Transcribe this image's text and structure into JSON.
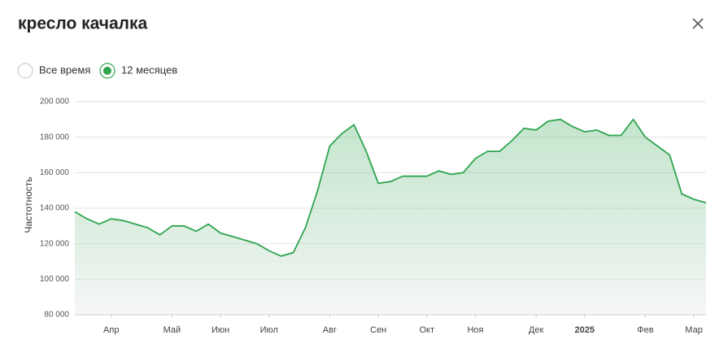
{
  "header": {
    "title": "кресло качалка"
  },
  "options": [
    {
      "label": "Все время",
      "selected": false
    },
    {
      "label": "12 месяцев",
      "selected": true
    }
  ],
  "chart_data": {
    "type": "area",
    "ylabel": "Частотность",
    "categories": [
      null,
      null,
      null,
      "Апр",
      null,
      null,
      null,
      null,
      "Май",
      null,
      null,
      null,
      "Июн",
      null,
      null,
      null,
      "Июл",
      null,
      null,
      null,
      null,
      "Авг",
      null,
      null,
      null,
      "Сен",
      null,
      null,
      null,
      "Окт",
      null,
      null,
      null,
      "Ноя",
      null,
      null,
      null,
      null,
      "Дек",
      null,
      null,
      null,
      "2025",
      null,
      null,
      null,
      null,
      "Фев",
      null,
      null,
      null,
      "Мар",
      null
    ],
    "values": [
      138000,
      134000,
      131000,
      134000,
      133000,
      131000,
      129000,
      125000,
      130000,
      130000,
      127000,
      131000,
      126000,
      124000,
      122000,
      120000,
      116000,
      113000,
      115000,
      129000,
      150000,
      175000,
      182000,
      187000,
      172000,
      154000,
      155000,
      158000,
      158000,
      158000,
      161000,
      159000,
      160000,
      168000,
      172000,
      172000,
      178000,
      185000,
      184000,
      189000,
      190000,
      186000,
      183000,
      184000,
      181000,
      181000,
      190000,
      180000,
      175000,
      170000,
      148000,
      145000,
      143000
    ],
    "color": "#2ea44f",
    "ylim": [
      80000,
      200000
    ],
    "yticks": [
      {
        "value": 80000,
        "label": "80 000"
      },
      {
        "value": 100000,
        "label": "100 000"
      },
      {
        "value": 120000,
        "label": "120 000"
      },
      {
        "value": 140000,
        "label": "140 000"
      },
      {
        "value": 160000,
        "label": "160 000"
      },
      {
        "value": 180000,
        "label": "180 000"
      },
      {
        "value": 200000,
        "label": "200 000"
      }
    ],
    "grid": true
  }
}
